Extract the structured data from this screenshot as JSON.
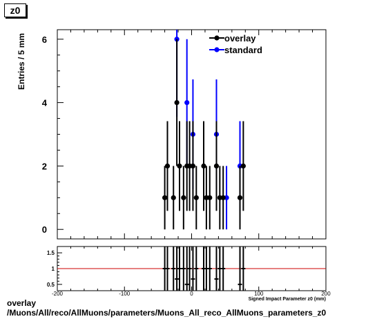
{
  "histogram": {
    "name": "z0"
  },
  "chart_data": {
    "type": "scatter",
    "ylabel": "Entries / 5 mm",
    "xlabel": "Signed Impact Parameter z0 (mm)",
    "xlim": [
      -200,
      200
    ],
    "ylim": [
      -0.3,
      6.3
    ],
    "x_ticks": [
      "-200",
      "-100",
      "0",
      "100",
      "200"
    ],
    "y_ticks": [
      "0",
      "2",
      "4",
      "6"
    ],
    "legend_position": "top-right",
    "series": [
      {
        "name": "overlay",
        "color": "#000000",
        "points": [
          {
            "x": -40,
            "y": 1
          },
          {
            "x": -36,
            "y": 2
          },
          {
            "x": -27,
            "y": 1
          },
          {
            "x": -22,
            "y": 4
          },
          {
            "x": -18,
            "y": 2
          },
          {
            "x": -12,
            "y": 1
          },
          {
            "x": -7,
            "y": 2
          },
          {
            "x": -3,
            "y": 2
          },
          {
            "x": 2,
            "y": 2
          },
          {
            "x": 7,
            "y": 1
          },
          {
            "x": 18,
            "y": 2
          },
          {
            "x": 22,
            "y": 1
          },
          {
            "x": 27,
            "y": 1
          },
          {
            "x": 37,
            "y": 2
          },
          {
            "x": 42,
            "y": 1
          },
          {
            "x": 47,
            "y": 1
          },
          {
            "x": 72,
            "y": 1
          },
          {
            "x": 77,
            "y": 2
          }
        ]
      },
      {
        "name": "standard",
        "color": "#0000ff",
        "points": [
          {
            "x": -22,
            "y": 6
          },
          {
            "x": -7,
            "y": 4
          },
          {
            "x": 2,
            "y": 3
          },
          {
            "x": 37,
            "y": 3
          },
          {
            "x": 52,
            "y": 1
          },
          {
            "x": 72,
            "y": 2
          }
        ]
      }
    ],
    "ratio_panel": {
      "ylim": [
        0.3,
        1.7
      ],
      "y_ticks": [
        "0.5",
        "1",
        "1.5"
      ],
      "reference_line": 1,
      "reference_color": "#cc0000",
      "points": [
        {
          "x": -40,
          "y": 1
        },
        {
          "x": -36,
          "y": 1
        },
        {
          "x": -27,
          "y": 1
        },
        {
          "x": -22,
          "y": 0.67
        },
        {
          "x": -18,
          "y": 1
        },
        {
          "x": -12,
          "y": 1
        },
        {
          "x": -7,
          "y": 0.5
        },
        {
          "x": -3,
          "y": 1
        },
        {
          "x": 2,
          "y": 0.67
        },
        {
          "x": 7,
          "y": 1
        },
        {
          "x": 18,
          "y": 1
        },
        {
          "x": 22,
          "y": 1
        },
        {
          "x": 27,
          "y": 1
        },
        {
          "x": 37,
          "y": 0.67
        },
        {
          "x": 42,
          "y": 1
        },
        {
          "x": 47,
          "y": 1
        },
        {
          "x": 72,
          "y": 0.5
        },
        {
          "x": 77,
          "y": 1
        }
      ]
    }
  },
  "footer": {
    "line1": "overlay",
    "line2": "/Muons/All/reco/AllMuons/parameters/Muons_All_reco_AllMuons_parameters_z0"
  }
}
